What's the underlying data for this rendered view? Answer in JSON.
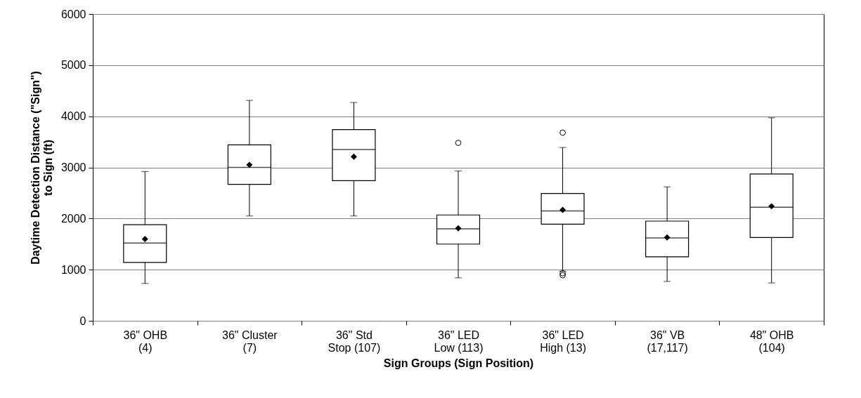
{
  "chart_data": {
    "type": "box",
    "xlabel": "Sign Groups (Sign Position)",
    "ylabel": "Daytime Detection Distance (\"Sign\")\nto Sign (ft)",
    "categories": [
      "36\" OHB\n(4)",
      "36\" Cluster\n(7)",
      "36\" Std\nStop (107)",
      "36\" LED\nLow (113)",
      "36\" LED\nHigh (13)",
      "36\" VB\n(17,117)",
      "48\" OHB\n(104)"
    ],
    "boxes": [
      {
        "low": 730,
        "q1": 1140,
        "median": 1520,
        "q3": 1880,
        "high": 2920,
        "mean": 1600
      },
      {
        "low": 2050,
        "q1": 2670,
        "median": 3000,
        "q3": 3440,
        "high": 4310,
        "mean": 3050
      },
      {
        "low": 2050,
        "q1": 2740,
        "median": 3350,
        "q3": 3740,
        "high": 4270,
        "mean": 3210
      },
      {
        "low": 840,
        "q1": 1500,
        "median": 1800,
        "q3": 2070,
        "high": 2930,
        "mean": 1810,
        "outliers": [
          3480
        ]
      },
      {
        "low": 970,
        "q1": 1890,
        "median": 2150,
        "q3": 2490,
        "high": 3390,
        "mean": 2170,
        "outliers": [
          3680,
          930,
          890
        ]
      },
      {
        "low": 770,
        "q1": 1250,
        "median": 1620,
        "q3": 1950,
        "high": 2620,
        "mean": 1630
      },
      {
        "low": 740,
        "q1": 1630,
        "median": 2220,
        "q3": 2870,
        "high": 3970,
        "mean": 2240
      }
    ],
    "ylim": [
      0,
      6000
    ],
    "yticks": [
      0,
      1000,
      2000,
      3000,
      4000,
      5000,
      6000
    ],
    "grid": "y"
  }
}
